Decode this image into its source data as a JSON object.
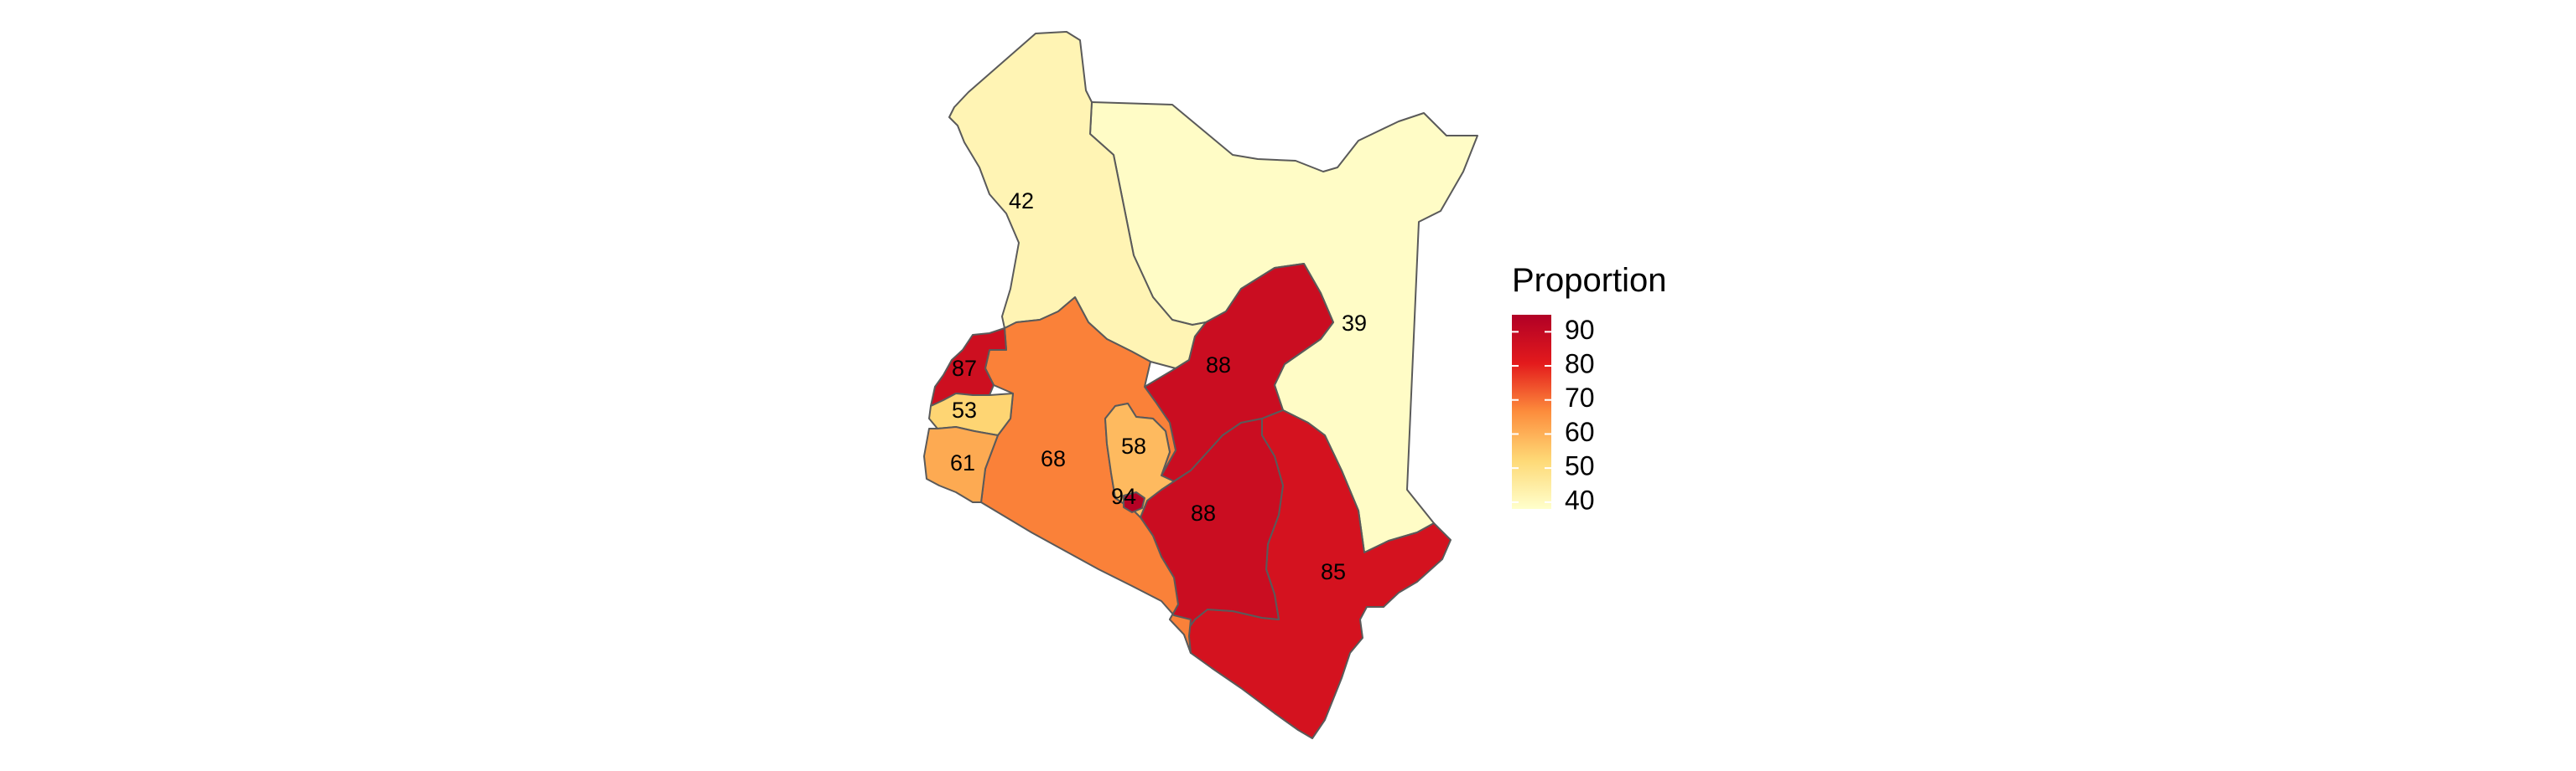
{
  "map": {
    "regions": [
      {
        "id": "turkana",
        "value": 42,
        "label": "42"
      },
      {
        "id": "north-eastern",
        "value": 39,
        "label": "39"
      },
      {
        "id": "bungoma",
        "value": 87,
        "label": "87"
      },
      {
        "id": "kakamega",
        "value": 53,
        "label": "53"
      },
      {
        "id": "nyanza",
        "value": 61,
        "label": "61"
      },
      {
        "id": "rift-valley-south",
        "value": 68,
        "label": "68"
      },
      {
        "id": "central",
        "value": 58,
        "label": "58"
      },
      {
        "id": "nairobi",
        "value": 94,
        "label": "94"
      },
      {
        "id": "eastern-north",
        "value": 88,
        "label": "88"
      },
      {
        "id": "eastern-south",
        "value": 88,
        "label": "88"
      },
      {
        "id": "coast",
        "value": 85,
        "label": "85"
      }
    ]
  },
  "legend": {
    "title": "Proportion",
    "ticks": [
      "90",
      "80",
      "70",
      "60",
      "50",
      "40"
    ],
    "tick_values": [
      90,
      80,
      70,
      60,
      50,
      40
    ],
    "min": 38,
    "max": 95,
    "colors": [
      "#ffffcc",
      "#fed976",
      "#fd8d3c",
      "#e31a1c",
      "#b10026"
    ]
  }
}
